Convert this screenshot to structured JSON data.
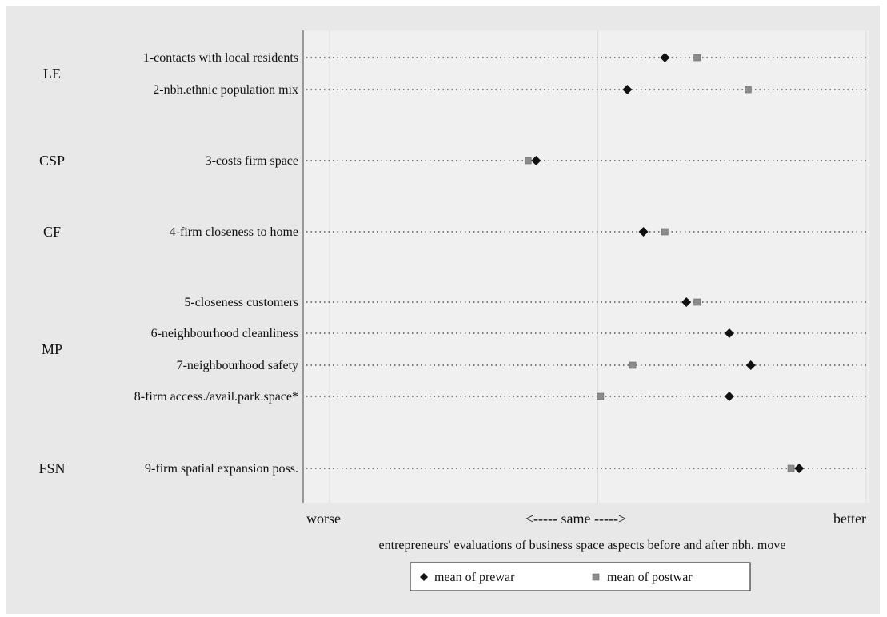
{
  "chart_data": {
    "type": "scatter",
    "title": "",
    "xlabel": "entrepreneurs' evaluations of business space aspects before and after nbh. move",
    "x_tick_labels": {
      "left": "worse",
      "middle": "<----- same ----->",
      "right": "better"
    },
    "xlim": [
      -1,
      1
    ],
    "groups": [
      {
        "code": "LE",
        "items": [
          0,
          1
        ]
      },
      {
        "code": "CSP",
        "items": [
          2
        ]
      },
      {
        "code": "CF",
        "items": [
          3
        ]
      },
      {
        "code": "MP",
        "items": [
          4,
          5,
          6,
          7
        ]
      },
      {
        "code": "FSN",
        "items": [
          8
        ]
      }
    ],
    "categories": [
      "1-contacts with local residents",
      "2-nbh.ethnic population mix",
      "3-costs firm space",
      "4-firm closeness to home",
      "5-closeness customers",
      "6-neighbourhood cleanliness",
      "7-neighbourhood safety",
      "8-firm access./avail.park.space*",
      "9-firm spatial expansion poss."
    ],
    "series": [
      {
        "name": "mean of prewar",
        "marker": "diamond",
        "color": "#111111",
        "values": [
          0.25,
          0.11,
          -0.23,
          0.17,
          0.33,
          0.49,
          0.57,
          0.49,
          0.75
        ]
      },
      {
        "name": "mean of postwar",
        "marker": "square",
        "color": "#8c8c8c",
        "values": [
          0.37,
          0.56,
          -0.26,
          0.25,
          0.37,
          null,
          0.13,
          0.01,
          0.72
        ]
      }
    ],
    "grid": "dotted horizontal lines per item, faint vertical gridlines",
    "legend_position": "bottom-center"
  }
}
